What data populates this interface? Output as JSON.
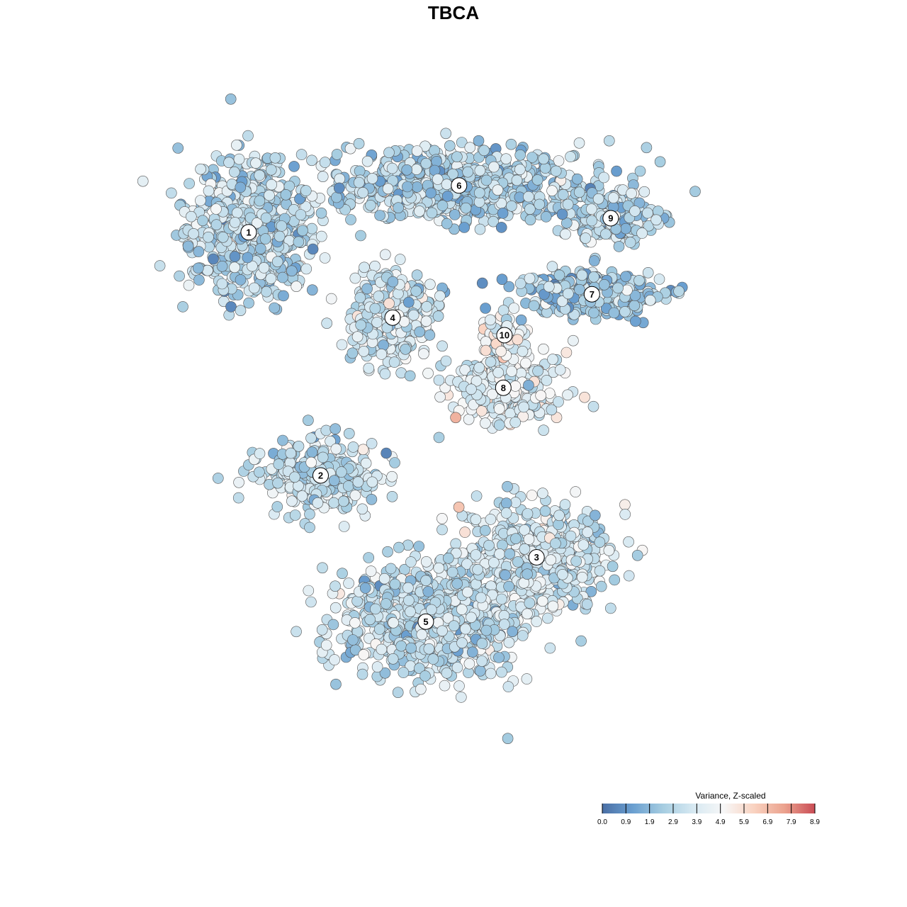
{
  "chart_data": {
    "type": "scatter",
    "title": "TBCA",
    "xlabel": "",
    "ylabel": "",
    "axes_visible": false,
    "grid": false,
    "point_style": {
      "fill": "diverging colour by value",
      "stroke": "#555555"
    },
    "color_scale": {
      "title": "Variance, Z-scaled",
      "range": [
        0.0,
        8.9
      ],
      "stops": [
        "#4a6fa5",
        "#6a9fd0",
        "#a6cde1",
        "#d7e9f2",
        "#f7f7f7",
        "#f9d2c0",
        "#eba28e",
        "#c94c55"
      ],
      "ticks": [
        "0.0",
        "0.9",
        "1.9",
        "2.9",
        "3.9",
        "4.9",
        "5.9",
        "6.9",
        "7.9",
        "8.9"
      ],
      "placement": "bottom-right"
    },
    "clusters": [
      {
        "label": "1",
        "x": -18.5,
        "y": 18.8,
        "mean_value": 3.0
      },
      {
        "label": "2",
        "x": -12.0,
        "y": -2.0,
        "mean_value": 3.2
      },
      {
        "label": "3",
        "x": 7.5,
        "y": -9.0,
        "mean_value": 3.5
      },
      {
        "label": "4",
        "x": -5.5,
        "y": 11.5,
        "mean_value": 3.6
      },
      {
        "label": "5",
        "x": -2.5,
        "y": -14.5,
        "mean_value": 3.3
      },
      {
        "label": "6",
        "x": 0.5,
        "y": 22.8,
        "mean_value": 2.8
      },
      {
        "label": "7",
        "x": 12.5,
        "y": 13.5,
        "mean_value": 2.6
      },
      {
        "label": "8",
        "x": 4.5,
        "y": 5.5,
        "mean_value": 4.2
      },
      {
        "label": "9",
        "x": 14.2,
        "y": 20.0,
        "mean_value": 3.0
      },
      {
        "label": "10",
        "x": 4.6,
        "y": 10.0,
        "mean_value": 4.6
      }
    ],
    "xlim": [
      -32,
      32
    ],
    "ylim": [
      -28,
      32
    ]
  }
}
